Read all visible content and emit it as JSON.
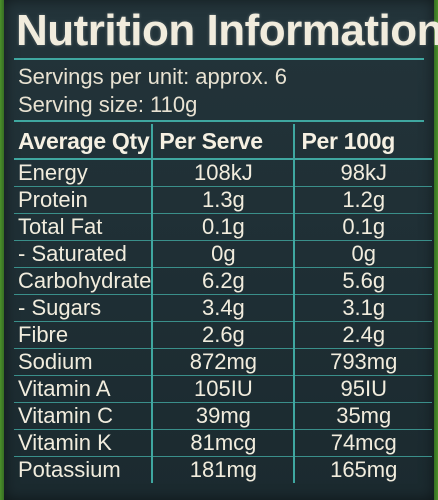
{
  "title": "Nutrition Information",
  "servings_per_unit": "Servings per unit: approx. 6",
  "serving_size": "Serving size: 110g",
  "columns": [
    "Average Qty",
    "Per Serve",
    "Per 100g"
  ],
  "rows": [
    {
      "name": "Energy",
      "per_serve": "108kJ",
      "per_100g": "98kJ"
    },
    {
      "name": "Protein",
      "per_serve": "1.3g",
      "per_100g": "1.2g"
    },
    {
      "name": "Total Fat",
      "per_serve": "0.1g",
      "per_100g": "0.1g"
    },
    {
      "name": "- Saturated",
      "per_serve": "0g",
      "per_100g": "0g"
    },
    {
      "name": "Carbohydrate",
      "per_serve": "6.2g",
      "per_100g": "5.6g"
    },
    {
      "name": "- Sugars",
      "per_serve": "3.4g",
      "per_100g": "3.1g"
    },
    {
      "name": "Fibre",
      "per_serve": "2.6g",
      "per_100g": "2.4g"
    },
    {
      "name": "Sodium",
      "per_serve": "872mg",
      "per_100g": "793mg"
    },
    {
      "name": "Vitamin A",
      "per_serve": "105IU",
      "per_100g": "95IU"
    },
    {
      "name": "Vitamin C",
      "per_serve": "39mg",
      "per_100g": "35mg"
    },
    {
      "name": "Vitamin K",
      "per_serve": "81mcg",
      "per_100g": "74mcg"
    },
    {
      "name": "Potassium",
      "per_serve": "181mg",
      "per_100g": "165mg"
    }
  ]
}
